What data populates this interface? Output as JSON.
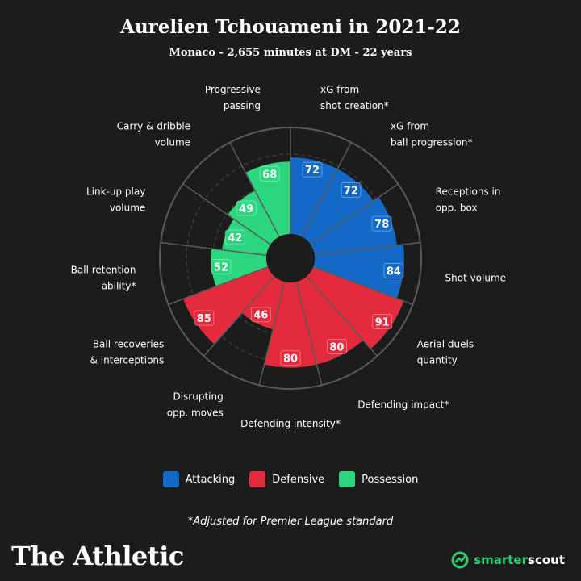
{
  "title": "Aurelien Tchouameni in 2021-22",
  "subtitle": "Monaco - 2,655 minutes at DM - 22 years",
  "footnote": "*Adjusted for Premier League standard",
  "brand": "The Athletic",
  "partner": {
    "part1": "smarter",
    "part2": "scout"
  },
  "colors": {
    "Attacking": "#1468c8",
    "Defensive": "#e32b3d",
    "Possession": "#2cd67f",
    "background": "#1c1c1c"
  },
  "legend": [
    {
      "label": "Attacking",
      "group": "Attacking"
    },
    {
      "label": "Defensive",
      "group": "Defensive"
    },
    {
      "label": "Possession",
      "group": "Possession"
    }
  ],
  "chart_data": {
    "type": "polar-bar",
    "range": [
      0,
      100
    ],
    "segments": [
      {
        "label": [
          "xG from",
          "shot creation*"
        ],
        "value": 72,
        "group": "Attacking"
      },
      {
        "label": [
          "xG from",
          "ball progression*"
        ],
        "value": 72,
        "group": "Attacking"
      },
      {
        "label": [
          "Receptions in",
          "opp. box"
        ],
        "value": 78,
        "group": "Attacking"
      },
      {
        "label": [
          "Shot volume"
        ],
        "value": 84,
        "group": "Attacking"
      },
      {
        "label": [
          "Aerial duels",
          "quantity"
        ],
        "value": 91,
        "group": "Defensive"
      },
      {
        "label": [
          "Defending impact*"
        ],
        "value": 80,
        "group": "Defensive"
      },
      {
        "label": [
          "Defending intensity*"
        ],
        "value": 80,
        "group": "Defensive"
      },
      {
        "label": [
          "Disrupting",
          "opp. moves"
        ],
        "value": 46,
        "group": "Defensive"
      },
      {
        "label": [
          "Ball recoveries",
          "& interceptions"
        ],
        "value": 85,
        "group": "Defensive"
      },
      {
        "label": [
          "Ball retention",
          "ability*"
        ],
        "value": 52,
        "group": "Possession"
      },
      {
        "label": [
          "Link-up play",
          "volume"
        ],
        "value": 42,
        "group": "Possession"
      },
      {
        "label": [
          "Carry & dribble",
          "volume"
        ],
        "value": 49,
        "group": "Possession"
      },
      {
        "label": [
          "Progressive",
          "passing"
        ],
        "value": 68,
        "group": "Possession"
      }
    ]
  }
}
